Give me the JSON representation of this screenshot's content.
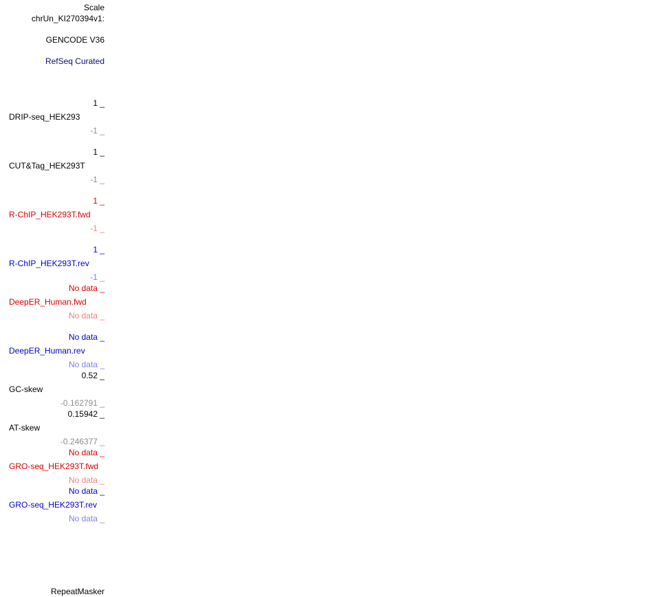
{
  "header": {
    "scale_label": "Scale",
    "chrom_label": "chrUn_KI270394v1:"
  },
  "tracks": {
    "gencode": {
      "label": "GENCODE V36"
    },
    "refseq": {
      "label": "RefSeq Curated"
    },
    "drip": {
      "max": "1 _",
      "name": "DRIP-seq_HEK293",
      "min": "-1 _"
    },
    "cuttag": {
      "max": "1 _",
      "name": "CUT&Tag_HEK293T",
      "min": "-1 _"
    },
    "rchip_fwd": {
      "max": "1 _",
      "name": "R-ChIP_HEK293T.fwd",
      "min": "-1 _"
    },
    "rchip_rev": {
      "max": "1 _",
      "name": "R-ChIP_HEK293T.rev",
      "min": "-1 _"
    },
    "deeper_fwd": {
      "max": "No data _",
      "name": "DeepER_Human.fwd",
      "min": "No data _"
    },
    "deeper_rev": {
      "max": "No data _",
      "name": "DeepER_Human.rev",
      "min": "No data _"
    },
    "gc_skew": {
      "max": "0.52 _",
      "name": "GC-skew",
      "min": "-0.162791 _"
    },
    "at_skew": {
      "max": "0.15942 _",
      "name": "AT-skew",
      "min": "-0.246377 _"
    },
    "groseq_fwd": {
      "max": "No data _",
      "name": "GRO-seq_HEK293T.fwd",
      "min": "No data _"
    },
    "groseq_rev": {
      "max": "No data _",
      "name": "GRO-seq_HEK293T.rev",
      "min": "No data _"
    },
    "repeatmasker": {
      "label": "RepeatMasker"
    }
  },
  "colors": {
    "black": "#000000",
    "grey": "#8c8c8c",
    "navy": "#0c0c78",
    "red": "#d80000",
    "light_red": "#ec7f7f",
    "blue": "#0000cc",
    "light_blue": "#7f7fe5"
  }
}
